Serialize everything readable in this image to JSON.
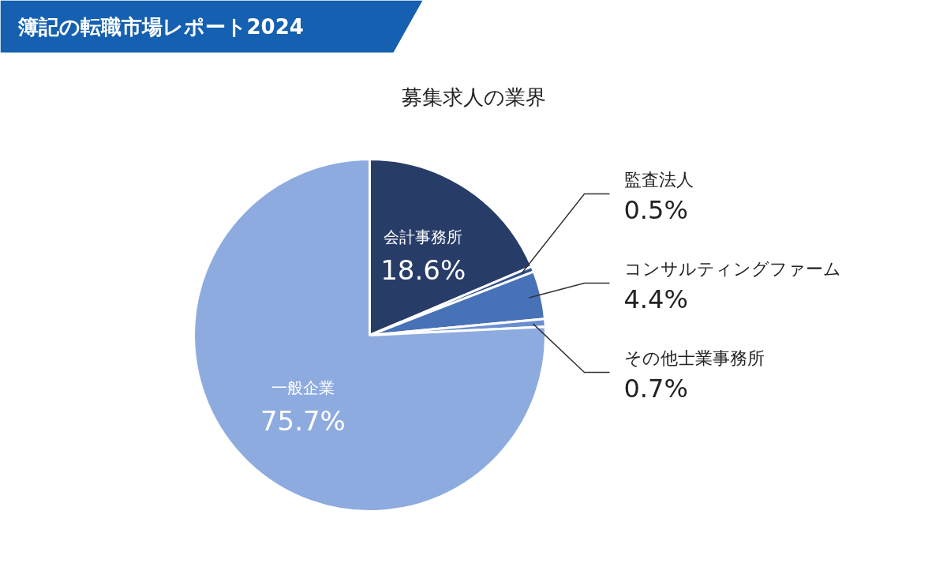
{
  "chart_data": {
    "type": "pie",
    "title": "募集求人の業界",
    "annotations": [
      "簿記の転職市場レポート2024"
    ],
    "categories": [
      "会計事務所",
      "監査法人",
      "コンサルティングファーム",
      "その他士業事務所",
      "一般企業"
    ],
    "values": [
      18.6,
      0.5,
      4.4,
      0.7,
      75.7
    ],
    "value_labels": [
      "18.6%",
      "0.5%",
      "4.4%",
      "0.7%",
      "75.7%"
    ],
    "colors": [
      "#283c68",
      "#2f4f8f",
      "#4872b7",
      "#6a8fd0",
      "#8eabe0"
    ]
  }
}
